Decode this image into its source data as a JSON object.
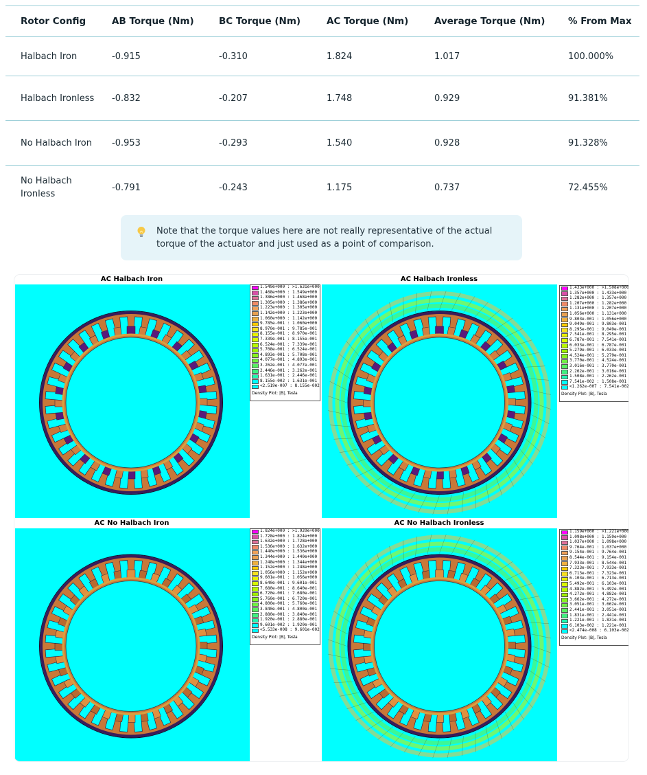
{
  "table": {
    "headers": [
      "Rotor Config",
      "AB Torque (Nm)",
      "BC Torque (Nm)",
      "AC Torque (Nm)",
      "Average Torque (Nm)",
      "% From Max"
    ],
    "rows": [
      [
        "Halbach Iron",
        "-0.915",
        "-0.310",
        "1.824",
        "1.017",
        "100.000%"
      ],
      [
        "Halbach Ironless",
        "-0.832",
        "-0.207",
        "1.748",
        "0.929",
        "91.381%"
      ],
      [
        "No Halbach Iron",
        "-0.953",
        "-0.293",
        "1.540",
        "0.928",
        "91.328%"
      ],
      [
        "No Halbach Ironless",
        "-0.791",
        "-0.243",
        "1.175",
        "0.737",
        "72.455%"
      ]
    ]
  },
  "callout": {
    "icon": "lightbulb-icon",
    "text": "Note that the torque values here are not really representative of the actual torque of the actuator and just used as a point of comparison."
  },
  "figure": {
    "background": "#00ffff",
    "color_scale": [
      "#ff00ff",
      "#d94fa8",
      "#e0709a",
      "#f08a66",
      "#f0a058",
      "#e8a050",
      "#f0b040",
      "#ffcc00",
      "#f8e020",
      "#e8f000",
      "#d8f800",
      "#b8f800",
      "#a0f000",
      "#88f020",
      "#70f040",
      "#58f060",
      "#40f080",
      "#20f8b0",
      "#00ffff"
    ],
    "panels": [
      {
        "title": "AC Halbach Iron",
        "legend_caption": "Density Plot: |B|, Tesla",
        "legend": [
          "1.549e+000 : >1.631e+000",
          "1.468e+000 : 1.549e+000",
          "1.386e+000 : 1.468e+000",
          "1.305e+000 : 1.386e+000",
          "1.223e+000 : 1.305e+000",
          "1.142e+000 : 1.223e+000",
          "1.060e+000 : 1.142e+000",
          "9.785e-001 : 1.060e+000",
          "8.970e-001 : 9.785e-001",
          "8.155e-001 : 8.970e-001",
          "7.339e-001 : 8.155e-001",
          "6.524e-001 : 7.339e-001",
          "5.708e-001 : 6.524e-001",
          "4.893e-001 : 5.708e-001",
          "4.077e-001 : 4.893e-001",
          "3.262e-001 : 4.077e-001",
          "2.446e-001 : 3.262e-001",
          "1.631e-001 : 2.446e-001",
          "8.155e-002 : 1.631e-001",
          "<2.519e-007 : 8.155e-002"
        ]
      },
      {
        "title": "AC Halbach Ironless",
        "legend_caption": "Density Plot: |B|, Tesla",
        "legend": [
          "1.433e+000 : >1.508e+000",
          "1.357e+000 : 1.433e+000",
          "1.282e+000 : 1.357e+000",
          "1.207e+000 : 1.282e+000",
          "1.131e+000 : 1.207e+000",
          "1.056e+000 : 1.131e+000",
          "9.803e-001 : 1.056e+000",
          "9.049e-001 : 9.803e-001",
          "8.295e-001 : 9.049e-001",
          "7.541e-001 : 8.295e-001",
          "6.787e-001 : 7.541e-001",
          "6.033e-001 : 6.787e-001",
          "5.279e-001 : 6.033e-001",
          "4.524e-001 : 5.279e-001",
          "3.770e-001 : 4.524e-001",
          "3.016e-001 : 3.770e-001",
          "2.262e-001 : 3.016e-001",
          "1.508e-001 : 2.262e-001",
          "7.541e-002 : 1.508e-001",
          "<1.262e-007 : 7.541e-002"
        ]
      },
      {
        "title": "AC No Halbach Iron",
        "legend_caption": "Density Plot: |B|, Tesla",
        "legend": [
          "1.824e+000 : >1.920e+000",
          "1.728e+000 : 1.824e+000",
          "1.632e+000 : 1.728e+000",
          "1.536e+000 : 1.632e+000",
          "1.440e+000 : 1.536e+000",
          "1.344e+000 : 1.440e+000",
          "1.248e+000 : 1.344e+000",
          "1.152e+000 : 1.248e+000",
          "1.056e+000 : 1.152e+000",
          "9.601e-001 : 1.056e+000",
          "8.640e-001 : 9.601e-001",
          "7.680e-001 : 8.640e-001",
          "6.720e-001 : 7.680e-001",
          "5.760e-001 : 6.720e-001",
          "4.800e-001 : 5.760e-001",
          "3.840e-001 : 4.800e-001",
          "2.880e-001 : 3.840e-001",
          "1.920e-001 : 2.880e-001",
          "9.601e-002 : 1.920e-001",
          "<5.533e-008 : 9.601e-002"
        ]
      },
      {
        "title": "AC No Halbach Ironless",
        "legend_caption": "Density Plot: |B|, Tesla",
        "legend": [
          "1.159e+000 : >1.221e+000",
          "1.098e+000 : 1.159e+000",
          "1.037e+000 : 1.098e+000",
          "9.764e-001 : 1.037e+000",
          "9.154e-001 : 9.764e-001",
          "8.544e-001 : 9.154e-001",
          "7.933e-001 : 8.544e-001",
          "7.323e-001 : 7.933e-001",
          "6.713e-001 : 7.323e-001",
          "6.103e-001 : 6.713e-001",
          "5.492e-001 : 6.103e-001",
          "4.882e-001 : 5.492e-001",
          "4.272e-001 : 4.882e-001",
          "3.662e-001 : 4.272e-001",
          "3.051e-001 : 3.662e-001",
          "2.441e-001 : 3.051e-001",
          "1.831e-001 : 2.441e-001",
          "1.221e-001 : 1.831e-001",
          "6.103e-002 : 1.221e-001",
          "<2.474e-008 : 6.103e-002"
        ]
      }
    ]
  }
}
